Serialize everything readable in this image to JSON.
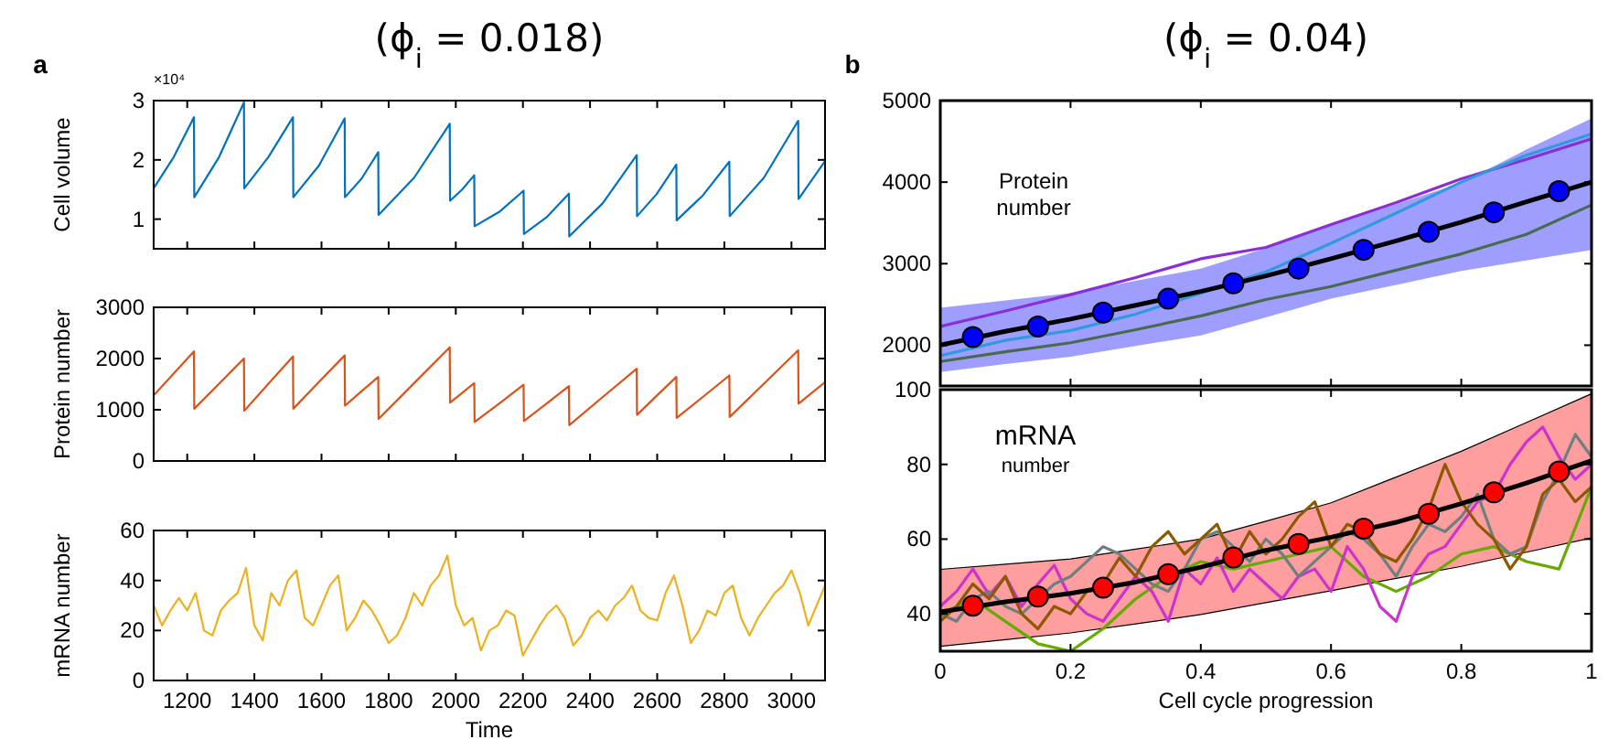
{
  "chart_data": [
    {
      "type": "line",
      "title": "(ϕ$_{i}$ = 0.018)",
      "ylabel": "Cell volume",
      "annotations": [
        "a",
        "×10⁴"
      ],
      "xlim": [
        1100,
        3100
      ],
      "xticks": [
        1200,
        1400,
        1600,
        1800,
        2000,
        2200,
        2400,
        2600,
        2800,
        3000
      ],
      "ylim": [
        0.5,
        3
      ],
      "yticks": [
        1,
        2,
        3
      ],
      "tick_labels": "y",
      "x": [
        1100,
        1160,
        1220,
        1221,
        1295,
        1369,
        1370,
        1442,
        1515,
        1516,
        1592,
        1669,
        1670,
        1719,
        1769,
        1770,
        1876,
        1982,
        1983,
        2019,
        2055,
        2056,
        2129,
        2202,
        2203,
        2270,
        2337,
        2338,
        2438,
        2539,
        2540,
        2598,
        2657,
        2658,
        2736,
        2815,
        2816,
        2918,
        3020,
        3021,
        3100
      ],
      "series": [
        {
          "color": "#0072bd",
          "values": [
            1.52,
            2.05,
            2.72,
            1.37,
            2.05,
            2.97,
            1.52,
            2.05,
            2.72,
            1.37,
            1.9,
            2.7,
            1.37,
            1.68,
            2.13,
            1.07,
            1.7,
            2.61,
            1.31,
            1.5,
            1.74,
            0.88,
            1.12,
            1.48,
            0.75,
            1.03,
            1.43,
            0.71,
            1.27,
            2.08,
            1.05,
            1.42,
            1.92,
            0.98,
            1.4,
            1.97,
            1.05,
            1.7,
            2.66,
            1.34,
            1.98
          ]
        }
      ]
    },
    {
      "type": "line",
      "ylabel": "Protein number",
      "xlim": [
        1100,
        3100
      ],
      "xticks": [
        1200,
        1400,
        1600,
        1800,
        2000,
        2200,
        2400,
        2600,
        2800,
        3000
      ],
      "ylim": [
        0,
        3000
      ],
      "yticks": [
        0,
        1000,
        2000,
        3000
      ],
      "tick_labels": "y",
      "x": [
        1100,
        1160,
        1220,
        1221,
        1295,
        1369,
        1370,
        1442,
        1515,
        1516,
        1592,
        1669,
        1670,
        1719,
        1769,
        1770,
        1876,
        1982,
        1983,
        2019,
        2055,
        2056,
        2129,
        2202,
        2203,
        2270,
        2337,
        2338,
        2438,
        2539,
        2540,
        2598,
        2657,
        2658,
        2736,
        2815,
        2816,
        2918,
        3020,
        3021,
        3100
      ],
      "series": [
        {
          "color": "#d95319",
          "values": [
            1280,
            1710,
            2140,
            1020,
            1510,
            2000,
            980,
            1510,
            2040,
            1020,
            1540,
            2060,
            1080,
            1360,
            1640,
            820,
            1520,
            2220,
            1140,
            1330,
            1520,
            760,
            1120,
            1490,
            780,
            1120,
            1460,
            700,
            1250,
            1800,
            900,
            1270,
            1640,
            840,
            1250,
            1670,
            860,
            1510,
            2160,
            1120,
            1540
          ]
        }
      ]
    },
    {
      "type": "line",
      "ylabel": "mRNA number",
      "xlabel": "Time",
      "xlim": [
        1100,
        3100
      ],
      "xticks": [
        1200,
        1400,
        1600,
        1800,
        2000,
        2200,
        2400,
        2600,
        2800,
        3000
      ],
      "ylim": [
        0,
        60
      ],
      "yticks": [
        0,
        20,
        40,
        60
      ],
      "x": [
        1100,
        1125,
        1150,
        1175,
        1200,
        1225,
        1250,
        1275,
        1300,
        1325,
        1350,
        1375,
        1400,
        1425,
        1450,
        1475,
        1500,
        1525,
        1550,
        1575,
        1600,
        1625,
        1650,
        1675,
        1700,
        1725,
        1750,
        1775,
        1800,
        1825,
        1850,
        1875,
        1900,
        1925,
        1950,
        1975,
        2000,
        2025,
        2050,
        2075,
        2100,
        2125,
        2150,
        2175,
        2200,
        2225,
        2250,
        2275,
        2300,
        2325,
        2350,
        2375,
        2400,
        2425,
        2450,
        2475,
        2500,
        2525,
        2550,
        2575,
        2600,
        2625,
        2650,
        2675,
        2700,
        2725,
        2750,
        2775,
        2800,
        2825,
        2850,
        2875,
        2900,
        2925,
        2950,
        2975,
        3000,
        3025,
        3050,
        3075,
        3100
      ],
      "series": [
        {
          "color": "#edb120",
          "values": [
            30,
            22,
            28,
            33,
            28,
            35,
            20,
            18,
            28,
            32,
            35,
            45,
            22,
            16,
            35,
            30,
            40,
            44,
            25,
            22,
            30,
            38,
            42,
            20,
            25,
            32,
            28,
            22,
            15,
            18,
            25,
            35,
            30,
            38,
            42,
            50,
            30,
            22,
            25,
            12,
            20,
            22,
            28,
            26,
            10,
            16,
            22,
            27,
            30,
            25,
            14,
            18,
            25,
            28,
            24,
            30,
            33,
            38,
            28,
            25,
            24,
            35,
            42,
            30,
            15,
            20,
            28,
            26,
            35,
            38,
            25,
            18,
            25,
            30,
            35,
            38,
            44,
            35,
            22,
            30,
            38
          ]
        }
      ]
    },
    {
      "type": "line",
      "title": "(ϕ$_{i}$ = 0.04)",
      "annotations": [
        "b",
        "Protein number"
      ],
      "xlim": [
        0,
        1
      ],
      "xticks": [
        0,
        0.2,
        0.4,
        0.6,
        0.8,
        1
      ],
      "ylim": [
        1500,
        5000
      ],
      "yticks": [
        2000,
        3000,
        4000,
        5000
      ],
      "tick_labels": "y",
      "marker": "none",
      "x": [
        0,
        0.1,
        0.2,
        0.3,
        0.4,
        0.5,
        0.6,
        0.7,
        0.8,
        0.9,
        1
      ],
      "series": [
        {
          "color": "#8a2ed8",
          "values": [
            2230,
            2420,
            2620,
            2830,
            3060,
            3200,
            3480,
            3750,
            4040,
            4280,
            4530
          ]
        },
        {
          "color": "#3399dd",
          "values": [
            1870,
            2060,
            2180,
            2380,
            2640,
            2900,
            3250,
            3620,
            4000,
            4330,
            4590
          ]
        },
        {
          "color": "#4a6a50",
          "values": [
            1800,
            1920,
            2030,
            2190,
            2360,
            2560,
            2720,
            2920,
            3120,
            3360,
            3720
          ]
        },
        {
          "color": "#000000",
          "values": [
            2000,
            2170,
            2320,
            2490,
            2660,
            2850,
            3060,
            3280,
            3510,
            3760,
            4000
          ],
          "lower": [
            1670,
            1770,
            1860,
            1990,
            2120,
            2340,
            2570,
            2740,
            2910,
            3040,
            3170
          ],
          "upper": [
            2460,
            2550,
            2640,
            2790,
            2940,
            3190,
            3470,
            3730,
            3990,
            4400,
            4780
          ]
        },
        {
          "type": "scatter",
          "marker": "circle",
          "color": "#0000ff",
          "x": [
            0.05,
            0.15,
            0.25,
            0.35,
            0.45,
            0.55,
            0.65,
            0.75,
            0.85,
            0.95
          ],
          "values": [
            2100,
            2230,
            2400,
            2570,
            2760,
            2940,
            3170,
            3390,
            3630,
            3890
          ]
        }
      ]
    },
    {
      "type": "line",
      "xlabel": "Cell cycle progression",
      "annotations": [
        "mRNA",
        "number"
      ],
      "xlim": [
        0,
        1
      ],
      "xticks": [
        0,
        0.2,
        0.4,
        0.6,
        0.8,
        1
      ],
      "ylim": [
        30,
        100
      ],
      "yticks": [
        40,
        60,
        80,
        100
      ],
      "marker": "none",
      "x": [
        0,
        0.1,
        0.2,
        0.3,
        0.4,
        0.5,
        0.6,
        0.7,
        0.8,
        0.9,
        1
      ],
      "series": [
        {
          "color": "#000000",
          "values": [
            40.5,
            43.2,
            45.5,
            48.5,
            52.5,
            57,
            60.5,
            64.5,
            69.5,
            75,
            81
          ],
          "lower": [
            31.3,
            33.1,
            34.9,
            37.3,
            39.8,
            43,
            46.2,
            49.5,
            52.7,
            56.5,
            60.3
          ],
          "upper": [
            51.9,
            53.3,
            54.7,
            57.3,
            60,
            64.8,
            69.7,
            76.6,
            83.5,
            91.2,
            98.9
          ]
        },
        {
          "color": "#66aa00",
          "x": [
            0,
            0.05,
            0.1,
            0.15,
            0.2,
            0.25,
            0.3,
            0.35,
            0.4,
            0.45,
            0.5,
            0.55,
            0.6,
            0.65,
            0.7,
            0.75,
            0.8,
            0.85,
            0.9,
            0.95,
            1
          ],
          "values": [
            40,
            44,
            38,
            32,
            30,
            36,
            44,
            50,
            54,
            52,
            54,
            56,
            58,
            50,
            46,
            50,
            56,
            58,
            54,
            52,
            74
          ]
        },
        {
          "color": "#cc33cc",
          "x": [
            0,
            0.025,
            0.05,
            0.075,
            0.1,
            0.125,
            0.15,
            0.175,
            0.2,
            0.225,
            0.25,
            0.275,
            0.3,
            0.325,
            0.35,
            0.375,
            0.4,
            0.425,
            0.45,
            0.475,
            0.5,
            0.525,
            0.55,
            0.575,
            0.6,
            0.625,
            0.65,
            0.675,
            0.7,
            0.725,
            0.75,
            0.775,
            0.8,
            0.825,
            0.85,
            0.875,
            0.9,
            0.925,
            0.95,
            0.975,
            1
          ],
          "values": [
            42,
            46,
            52,
            45,
            50,
            42,
            48,
            53,
            44,
            40,
            38,
            44,
            50,
            46,
            38,
            52,
            48,
            55,
            46,
            52,
            48,
            44,
            50,
            52,
            46,
            58,
            52,
            42,
            38,
            50,
            56,
            58,
            64,
            70,
            72,
            80,
            86,
            90,
            82,
            76,
            80
          ]
        },
        {
          "color": "#6f7f7f",
          "x": [
            0,
            0.025,
            0.05,
            0.075,
            0.1,
            0.125,
            0.15,
            0.175,
            0.2,
            0.225,
            0.25,
            0.275,
            0.3,
            0.325,
            0.35,
            0.375,
            0.4,
            0.425,
            0.45,
            0.475,
            0.5,
            0.525,
            0.55,
            0.575,
            0.6,
            0.625,
            0.65,
            0.675,
            0.7,
            0.725,
            0.75,
            0.775,
            0.8,
            0.825,
            0.85,
            0.875,
            0.9,
            0.925,
            0.95,
            0.975,
            1
          ],
          "values": [
            40,
            38,
            44,
            46,
            42,
            40,
            44,
            48,
            50,
            54,
            58,
            56,
            52,
            48,
            46,
            52,
            60,
            62,
            58,
            54,
            60,
            56,
            50,
            54,
            58,
            62,
            60,
            56,
            50,
            58,
            64,
            62,
            66,
            72,
            60,
            56,
            58,
            70,
            78,
            88,
            82
          ]
        },
        {
          "color": "#8b5a00",
          "x": [
            0,
            0.025,
            0.05,
            0.075,
            0.1,
            0.125,
            0.15,
            0.175,
            0.2,
            0.225,
            0.25,
            0.275,
            0.3,
            0.325,
            0.35,
            0.375,
            0.4,
            0.425,
            0.45,
            0.475,
            0.5,
            0.525,
            0.55,
            0.575,
            0.6,
            0.625,
            0.65,
            0.675,
            0.7,
            0.725,
            0.75,
            0.775,
            0.8,
            0.825,
            0.85,
            0.875,
            0.9,
            0.925,
            0.95,
            0.975,
            1
          ],
          "values": [
            38,
            42,
            48,
            44,
            50,
            40,
            36,
            42,
            40,
            46,
            48,
            55,
            50,
            58,
            62,
            56,
            60,
            64,
            54,
            62,
            56,
            60,
            66,
            70,
            58,
            64,
            62,
            56,
            54,
            60,
            68,
            80,
            70,
            64,
            60,
            52,
            58,
            72,
            76,
            70,
            74
          ]
        },
        {
          "type": "scatter",
          "marker": "circle",
          "color": "#ff0000",
          "x": [
            0.05,
            0.15,
            0.25,
            0.35,
            0.45,
            0.55,
            0.65,
            0.75,
            0.85,
            0.95
          ],
          "values": [
            42.2,
            44.6,
            47.0,
            50.6,
            55.1,
            58.7,
            62.8,
            66.8,
            72.5,
            78.1
          ]
        }
      ]
    }
  ]
}
